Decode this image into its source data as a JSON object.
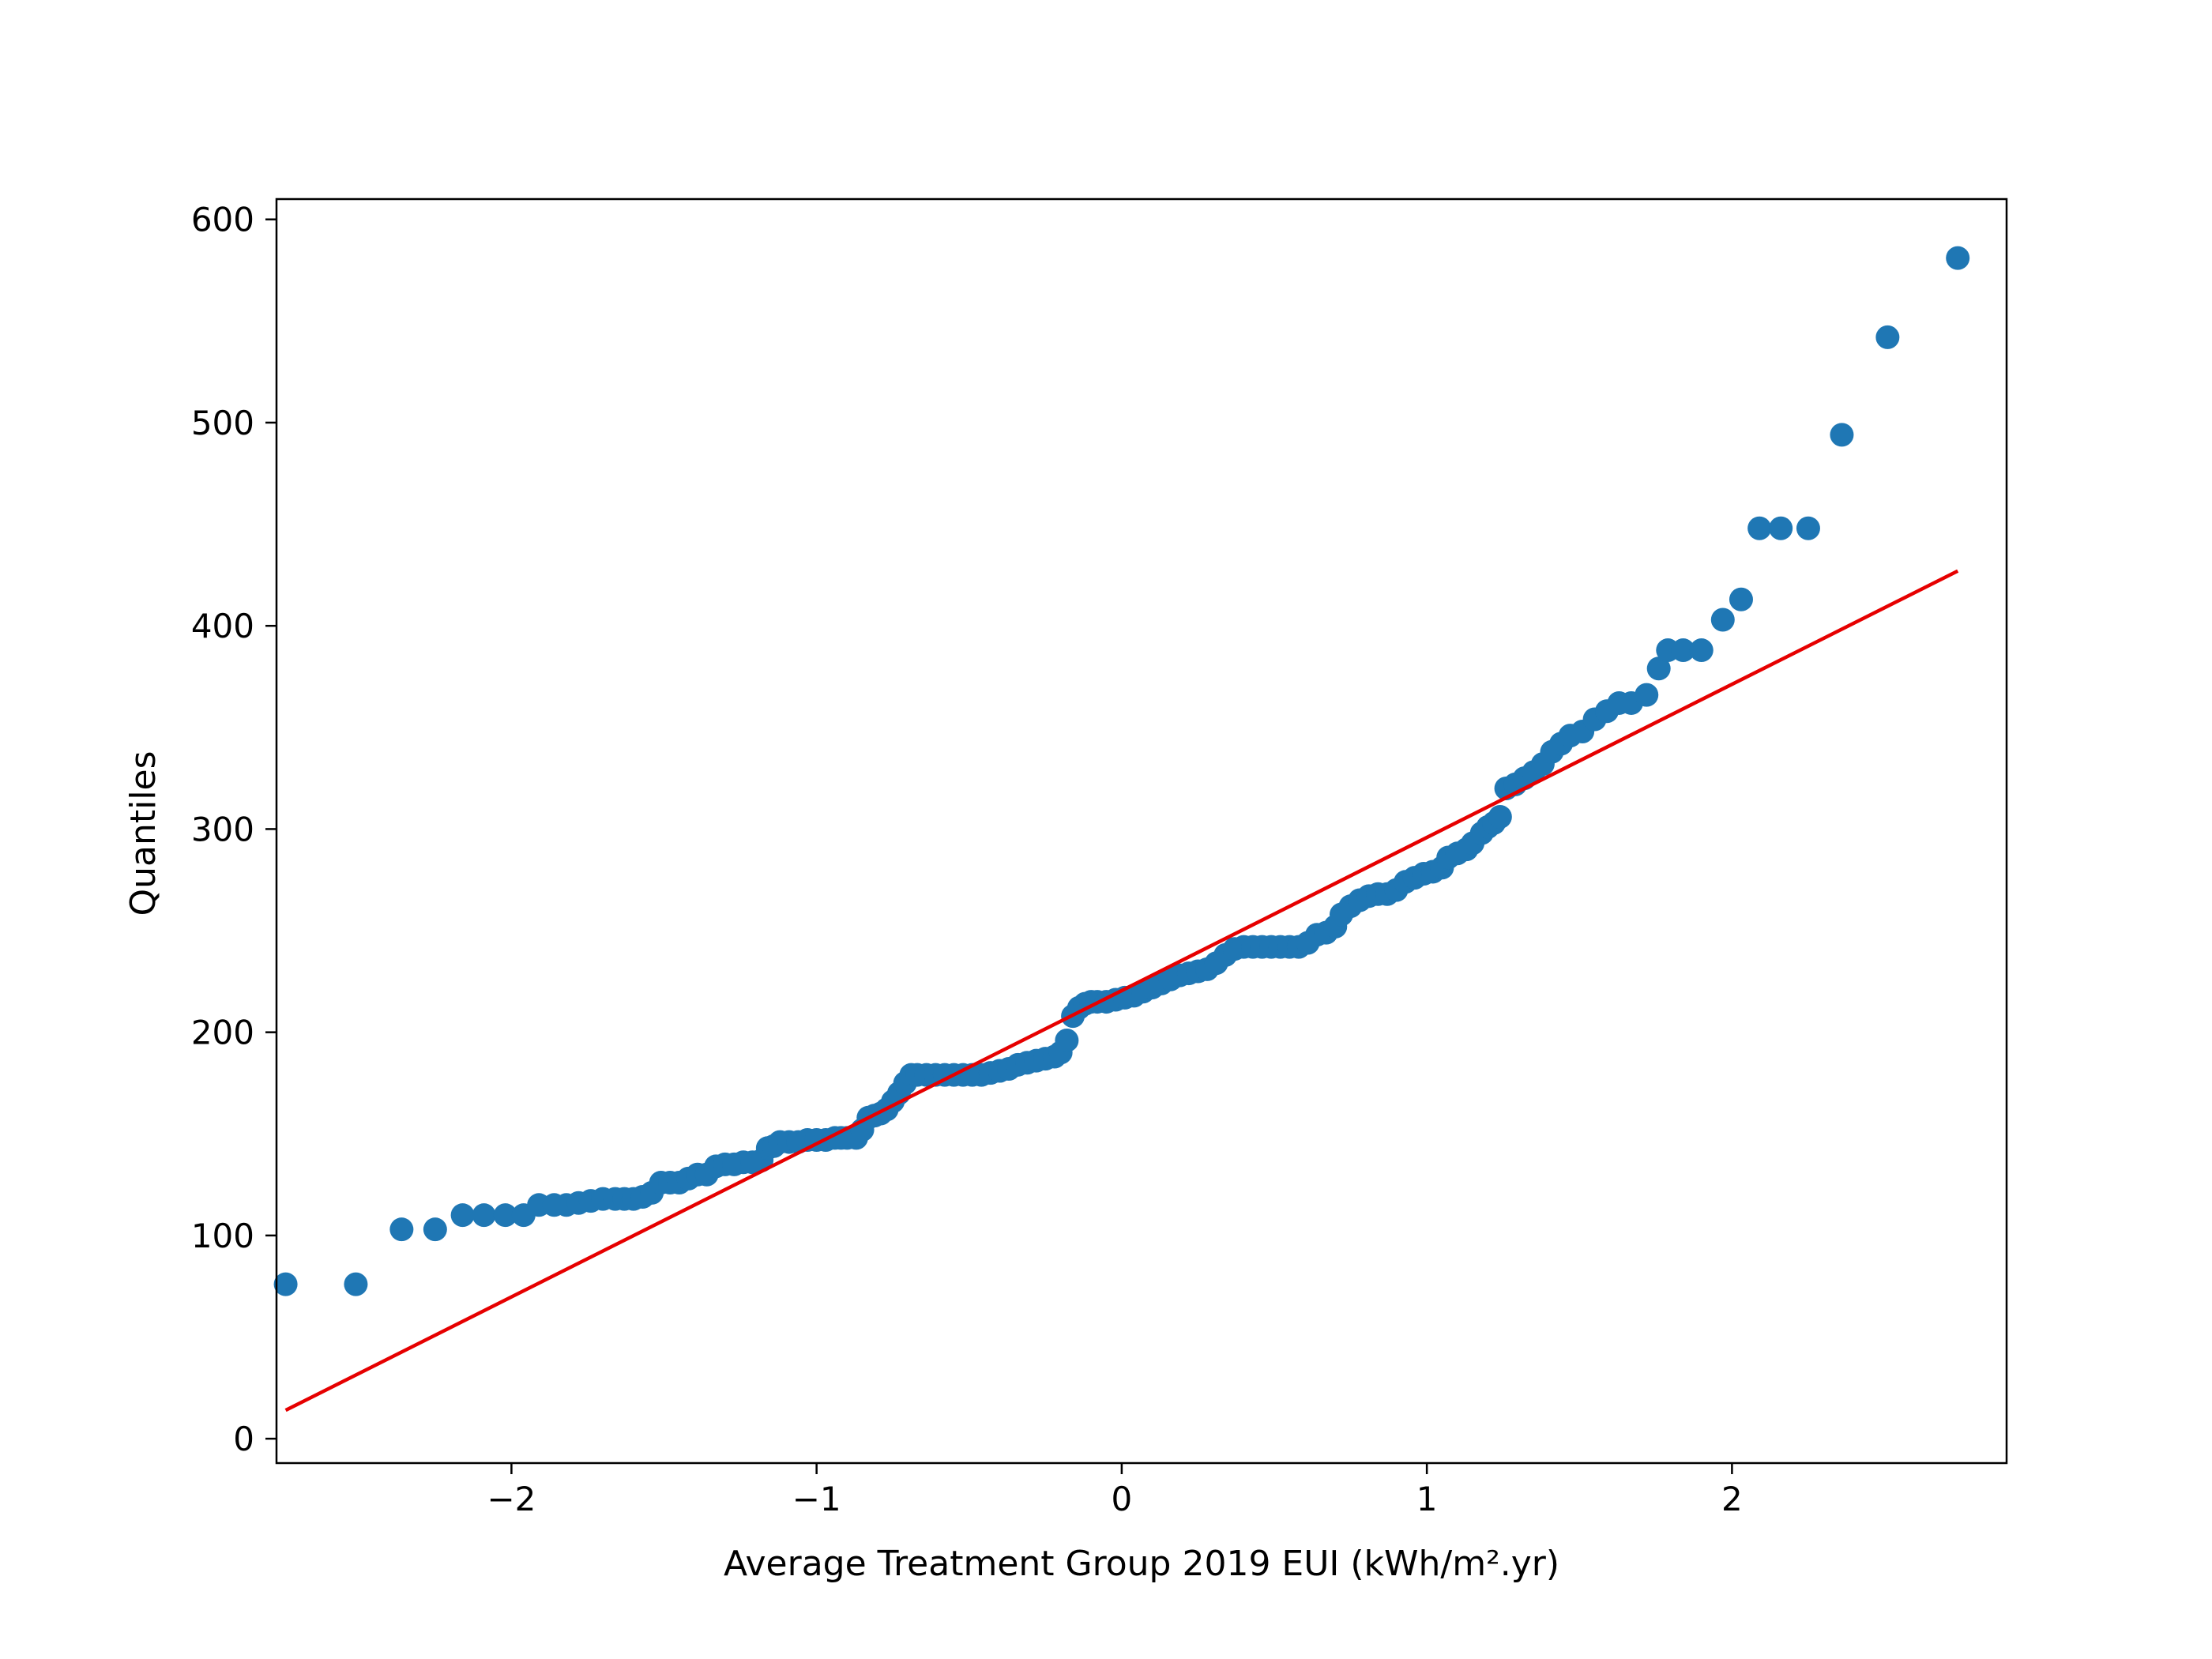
{
  "chart_data": {
    "type": "scatter",
    "xlabel": "Average Treatment Group 2019 EUI (kWh/m².yr)",
    "ylabel": "Quantiles",
    "xlim": [
      -2.77,
      2.9
    ],
    "ylim": [
      -12,
      610
    ],
    "x_ticks": [
      -2,
      -1,
      0,
      1,
      2
    ],
    "x_tick_labels": [
      "−2",
      "−1",
      "0",
      "1",
      "2"
    ],
    "y_ticks": [
      0,
      100,
      200,
      300,
      400,
      500,
      600
    ],
    "y_tick_labels": [
      "0",
      "100",
      "200",
      "300",
      "400",
      "500",
      "600"
    ],
    "grid": false,
    "colors": {
      "points": "#1f77b4",
      "line": "#e60000"
    },
    "reference_line": {
      "x": [
        -2.74,
        2.74
      ],
      "y": [
        14,
        427
      ]
    },
    "points": [
      [
        -2.74,
        76
      ],
      [
        -2.51,
        76
      ],
      [
        -2.36,
        103
      ],
      [
        -2.25,
        103
      ],
      [
        -2.16,
        110
      ],
      [
        -2.09,
        110
      ],
      [
        -2.02,
        110
      ],
      [
        -1.96,
        110
      ],
      [
        -1.91,
        115
      ],
      [
        -1.86,
        115
      ],
      [
        -1.82,
        115
      ],
      [
        -1.78,
        116
      ],
      [
        -1.74,
        117
      ],
      [
        -1.7,
        118
      ],
      [
        -1.66,
        118
      ],
      [
        -1.63,
        118
      ],
      [
        -1.6,
        118
      ],
      [
        -1.57,
        119
      ],
      [
        -1.54,
        121
      ],
      [
        -1.51,
        126
      ],
      [
        -1.48,
        126
      ],
      [
        -1.45,
        126
      ],
      [
        -1.42,
        128
      ],
      [
        -1.39,
        130
      ],
      [
        -1.36,
        130
      ],
      [
        -1.33,
        134
      ],
      [
        -1.3,
        135
      ],
      [
        -1.27,
        135
      ],
      [
        -1.24,
        136
      ],
      [
        -1.21,
        136
      ],
      [
        -1.18,
        137
      ],
      [
        -1.16,
        143
      ],
      [
        -1.14,
        144
      ],
      [
        -1.12,
        146
      ],
      [
        -1.09,
        146
      ],
      [
        -1.06,
        146
      ],
      [
        -1.03,
        147
      ],
      [
        -1.0,
        147
      ],
      [
        -0.97,
        147
      ],
      [
        -0.94,
        148
      ],
      [
        -0.92,
        148
      ],
      [
        -0.9,
        148
      ],
      [
        -0.87,
        148
      ],
      [
        -0.85,
        152
      ],
      [
        -0.83,
        158
      ],
      [
        -0.81,
        159
      ],
      [
        -0.79,
        160
      ],
      [
        -0.77,
        162
      ],
      [
        -0.75,
        166
      ],
      [
        -0.73,
        170
      ],
      [
        -0.71,
        175
      ],
      [
        -0.69,
        179
      ],
      [
        -0.67,
        179
      ],
      [
        -0.64,
        179
      ],
      [
        -0.61,
        179
      ],
      [
        -0.58,
        179
      ],
      [
        -0.55,
        179
      ],
      [
        -0.52,
        179
      ],
      [
        -0.49,
        179
      ],
      [
        -0.46,
        179
      ],
      [
        -0.43,
        180
      ],
      [
        -0.4,
        181
      ],
      [
        -0.37,
        182
      ],
      [
        -0.34,
        184
      ],
      [
        -0.31,
        185
      ],
      [
        -0.28,
        186
      ],
      [
        -0.25,
        187
      ],
      [
        -0.22,
        188
      ],
      [
        -0.2,
        190
      ],
      [
        -0.18,
        196
      ],
      [
        -0.16,
        208
      ],
      [
        -0.14,
        212
      ],
      [
        -0.12,
        214
      ],
      [
        -0.1,
        215
      ],
      [
        -0.08,
        215
      ],
      [
        -0.05,
        215
      ],
      [
        -0.02,
        216
      ],
      [
        0.01,
        217
      ],
      [
        0.04,
        218
      ],
      [
        0.07,
        220
      ],
      [
        0.1,
        222
      ],
      [
        0.13,
        224
      ],
      [
        0.16,
        226
      ],
      [
        0.19,
        228
      ],
      [
        0.22,
        229
      ],
      [
        0.25,
        230
      ],
      [
        0.28,
        231
      ],
      [
        0.31,
        234
      ],
      [
        0.34,
        238
      ],
      [
        0.37,
        241
      ],
      [
        0.4,
        242
      ],
      [
        0.43,
        242
      ],
      [
        0.46,
        242
      ],
      [
        0.49,
        242
      ],
      [
        0.52,
        242
      ],
      [
        0.55,
        242
      ],
      [
        0.58,
        242
      ],
      [
        0.61,
        244
      ],
      [
        0.64,
        248
      ],
      [
        0.67,
        249
      ],
      [
        0.7,
        252
      ],
      [
        0.72,
        258
      ],
      [
        0.75,
        262
      ],
      [
        0.78,
        265
      ],
      [
        0.81,
        267
      ],
      [
        0.84,
        268
      ],
      [
        0.87,
        268
      ],
      [
        0.9,
        270
      ],
      [
        0.93,
        274
      ],
      [
        0.96,
        276
      ],
      [
        0.99,
        278
      ],
      [
        1.02,
        279
      ],
      [
        1.05,
        281
      ],
      [
        1.07,
        286
      ],
      [
        1.1,
        288
      ],
      [
        1.13,
        290
      ],
      [
        1.15,
        293
      ],
      [
        1.18,
        298
      ],
      [
        1.2,
        301
      ],
      [
        1.22,
        303
      ],
      [
        1.24,
        306
      ],
      [
        1.26,
        320
      ],
      [
        1.29,
        322
      ],
      [
        1.32,
        325
      ],
      [
        1.35,
        328
      ],
      [
        1.38,
        332
      ],
      [
        1.41,
        338
      ],
      [
        1.44,
        342
      ],
      [
        1.47,
        346
      ],
      [
        1.51,
        348
      ],
      [
        1.55,
        354
      ],
      [
        1.59,
        358
      ],
      [
        1.63,
        362
      ],
      [
        1.67,
        362
      ],
      [
        1.72,
        366
      ],
      [
        1.76,
        379
      ],
      [
        1.79,
        388
      ],
      [
        1.84,
        388
      ],
      [
        1.9,
        388
      ],
      [
        1.97,
        403
      ],
      [
        2.03,
        413
      ],
      [
        2.09,
        448
      ],
      [
        2.16,
        448
      ],
      [
        2.25,
        448
      ],
      [
        2.36,
        494
      ],
      [
        2.51,
        542
      ],
      [
        2.74,
        581
      ]
    ]
  }
}
